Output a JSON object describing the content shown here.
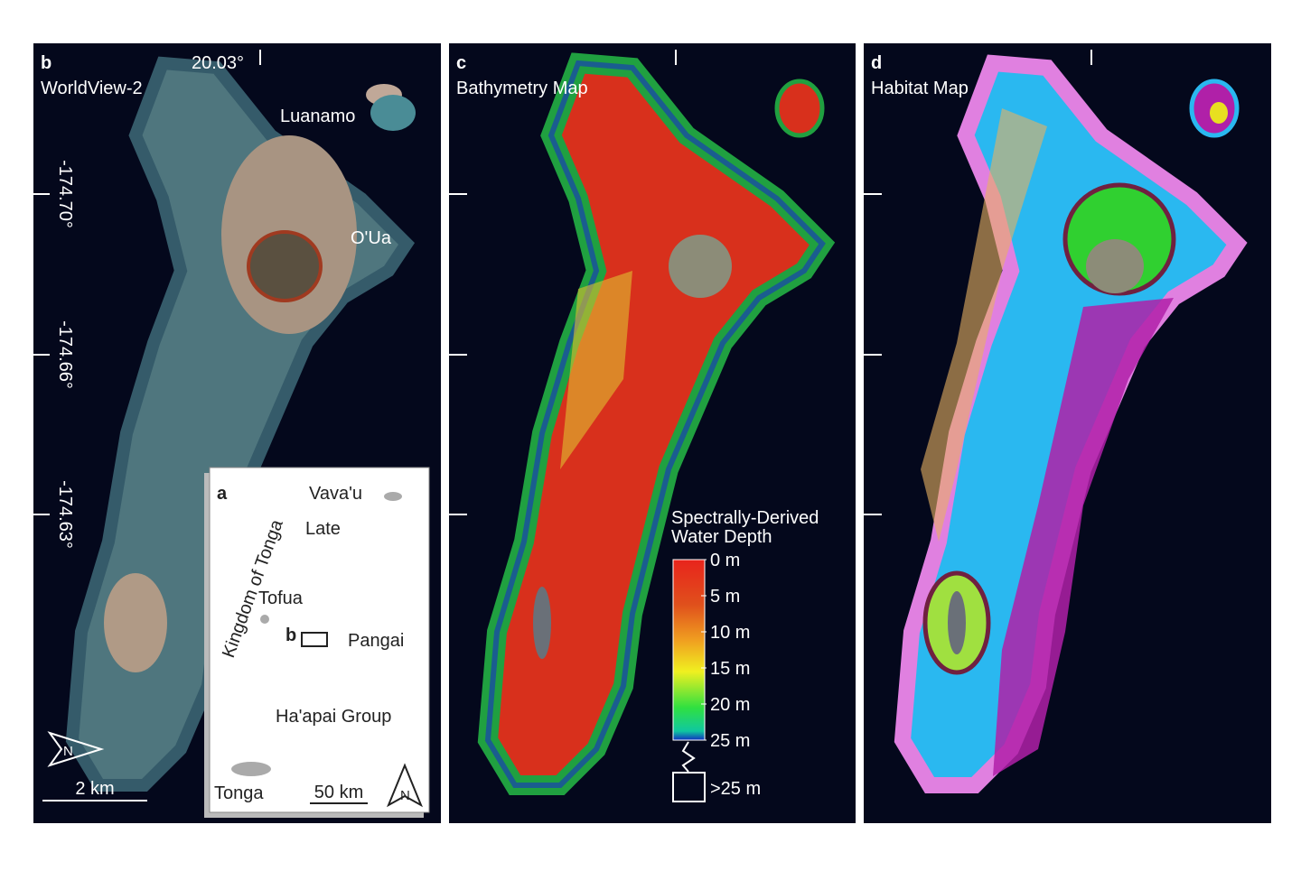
{
  "panel_b": {
    "letter": "b",
    "title": "WorldView-2",
    "lon_label": "20.03°",
    "lat_labels": [
      "-174.70°",
      "-174.66°",
      "-174.63°"
    ],
    "places": [
      "Luanamo",
      "O'Ua"
    ],
    "scale": "2 km",
    "north": "N"
  },
  "panel_a": {
    "letter": "a",
    "country": "Kingdom of Tonga",
    "places": [
      "Vava'u",
      "Late",
      "Tofua",
      "Pangai",
      "Ha'apai Group",
      "Tonga"
    ],
    "box_label": "b",
    "scale": "50 km",
    "north": "N"
  },
  "panel_c": {
    "letter": "c",
    "title": "Bathymetry Map",
    "legend": {
      "title_lines": [
        "Spectrally-Derived",
        "Water Depth"
      ],
      "labels": [
        "0 m",
        "5 m",
        "10 m",
        "15 m",
        "20 m",
        "25 m"
      ],
      "beyond": ">25 m"
    }
  },
  "panel_d": {
    "letter": "d",
    "title": "Habitat Map"
  }
}
